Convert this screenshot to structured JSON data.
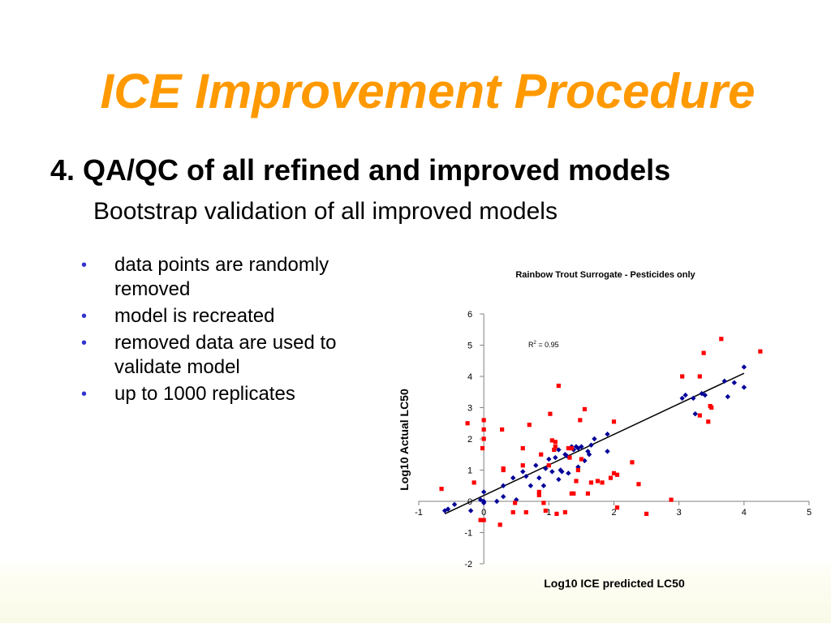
{
  "slide": {
    "title": "ICE Improvement Procedure",
    "heading": "4. QA/QC of all refined and improved models",
    "subheading": "Bootstrap validation of all improved models",
    "bullets": [
      "data points are randomly removed",
      "model is recreated",
      "removed data are used to validate model",
      "up to 1000 replicates"
    ],
    "bullet_color": "#3333cc",
    "title_color": "#ff9900"
  },
  "chart_data": {
    "type": "scatter",
    "title": "Rainbow Trout Surrogate - Pesticides only",
    "xlabel": "Log10 ICE predicted LC50",
    "ylabel": "Log10 Actual LC50",
    "xlim": [
      -1,
      5
    ],
    "ylim": [
      -2,
      6
    ],
    "xticks": [
      "-1",
      "0",
      "1",
      "2",
      "3",
      "4",
      "5"
    ],
    "yticks": [
      "-2",
      "-1",
      "0",
      "1",
      "2",
      "3",
      "4",
      "5",
      "6"
    ],
    "annotation": {
      "base": "R",
      "sup": "2",
      "rest": " = 0.95"
    },
    "trendline": {
      "x": [
        -0.6,
        4.0
      ],
      "y": [
        -0.4,
        4.1
      ],
      "color": "#000000"
    },
    "series": [
      {
        "color": "#000099",
        "marker": "diamond",
        "points": [
          [
            -0.6,
            -0.3
          ],
          [
            -0.55,
            -0.25
          ],
          [
            -0.45,
            -0.1
          ],
          [
            -0.2,
            -0.3
          ],
          [
            -0.05,
            0.05
          ],
          [
            0.0,
            0.3
          ],
          [
            0.0,
            0.0
          ],
          [
            0.0,
            -0.05
          ],
          [
            0.2,
            0.0
          ],
          [
            0.3,
            0.15
          ],
          [
            0.3,
            0.5
          ],
          [
            0.45,
            0.75
          ],
          [
            0.5,
            0.05
          ],
          [
            0.6,
            0.95
          ],
          [
            0.65,
            0.8
          ],
          [
            0.72,
            0.5
          ],
          [
            0.8,
            1.15
          ],
          [
            0.85,
            0.75
          ],
          [
            0.92,
            0.5
          ],
          [
            0.95,
            1.05
          ],
          [
            1.0,
            1.35
          ],
          [
            1.05,
            0.95
          ],
          [
            1.1,
            1.4
          ],
          [
            1.15,
            1.65
          ],
          [
            1.15,
            0.7
          ],
          [
            1.18,
            1.0
          ],
          [
            1.2,
            0.95
          ],
          [
            1.25,
            1.5
          ],
          [
            1.28,
            1.45
          ],
          [
            1.3,
            0.9
          ],
          [
            1.35,
            1.75
          ],
          [
            1.38,
            1.65
          ],
          [
            1.42,
            1.75
          ],
          [
            1.45,
            1.7
          ],
          [
            1.45,
            1.1
          ],
          [
            1.5,
            1.75
          ],
          [
            1.55,
            1.3
          ],
          [
            1.6,
            1.6
          ],
          [
            1.62,
            1.5
          ],
          [
            1.65,
            1.8
          ],
          [
            1.7,
            2.0
          ],
          [
            1.9,
            1.6
          ],
          [
            1.9,
            2.15
          ],
          [
            3.05,
            3.3
          ],
          [
            3.1,
            3.4
          ],
          [
            3.22,
            3.3
          ],
          [
            3.25,
            2.8
          ],
          [
            3.35,
            3.45
          ],
          [
            3.4,
            3.4
          ],
          [
            3.7,
            3.85
          ],
          [
            3.75,
            3.35
          ],
          [
            3.85,
            3.8
          ],
          [
            4.0,
            4.3
          ],
          [
            4.0,
            3.65
          ]
        ]
      },
      {
        "color": "#ff0000",
        "marker": "square",
        "points": [
          [
            -0.65,
            0.4
          ],
          [
            -0.25,
            2.5
          ],
          [
            -0.15,
            0.6
          ],
          [
            -0.05,
            -0.6
          ],
          [
            -0.02,
            1.7
          ],
          [
            0.0,
            2.6
          ],
          [
            0.0,
            2.3
          ],
          [
            0.0,
            2.0
          ],
          [
            0.0,
            -0.6
          ],
          [
            0.25,
            -0.75
          ],
          [
            0.28,
            2.3
          ],
          [
            0.3,
            1.05
          ],
          [
            0.3,
            1.0
          ],
          [
            0.45,
            -0.35
          ],
          [
            0.48,
            -0.05
          ],
          [
            0.6,
            1.15
          ],
          [
            0.6,
            1.7
          ],
          [
            0.65,
            -0.35
          ],
          [
            0.7,
            2.45
          ],
          [
            0.85,
            0.3
          ],
          [
            0.85,
            0.2
          ],
          [
            0.88,
            1.5
          ],
          [
            0.92,
            -0.05
          ],
          [
            0.95,
            -0.3
          ],
          [
            1.0,
            1.15
          ],
          [
            1.02,
            2.8
          ],
          [
            1.05,
            1.95
          ],
          [
            1.08,
            1.65
          ],
          [
            1.1,
            1.9
          ],
          [
            1.1,
            1.75
          ],
          [
            1.12,
            -0.4
          ],
          [
            1.15,
            3.7
          ],
          [
            1.25,
            -0.35
          ],
          [
            1.3,
            1.7
          ],
          [
            1.32,
            1.4
          ],
          [
            1.35,
            1.7
          ],
          [
            1.35,
            0.25
          ],
          [
            1.38,
            0.25
          ],
          [
            1.42,
            0.65
          ],
          [
            1.45,
            1.0
          ],
          [
            1.48,
            2.6
          ],
          [
            1.5,
            1.35
          ],
          [
            1.55,
            2.95
          ],
          [
            1.6,
            0.25
          ],
          [
            1.65,
            0.6
          ],
          [
            1.75,
            0.65
          ],
          [
            1.82,
            0.6
          ],
          [
            1.95,
            0.75
          ],
          [
            2.0,
            2.55
          ],
          [
            2.0,
            0.9
          ],
          [
            2.05,
            0.85
          ],
          [
            2.05,
            -0.2
          ],
          [
            2.28,
            1.25
          ],
          [
            2.38,
            0.55
          ],
          [
            2.5,
            -0.4
          ],
          [
            2.88,
            0.05
          ],
          [
            3.05,
            4.0
          ],
          [
            3.32,
            4.0
          ],
          [
            3.32,
            2.75
          ],
          [
            3.38,
            4.75
          ],
          [
            3.45,
            2.55
          ],
          [
            3.48,
            3.05
          ],
          [
            3.5,
            3.0
          ],
          [
            3.65,
            5.2
          ],
          [
            4.25,
            4.8
          ]
        ]
      }
    ]
  }
}
